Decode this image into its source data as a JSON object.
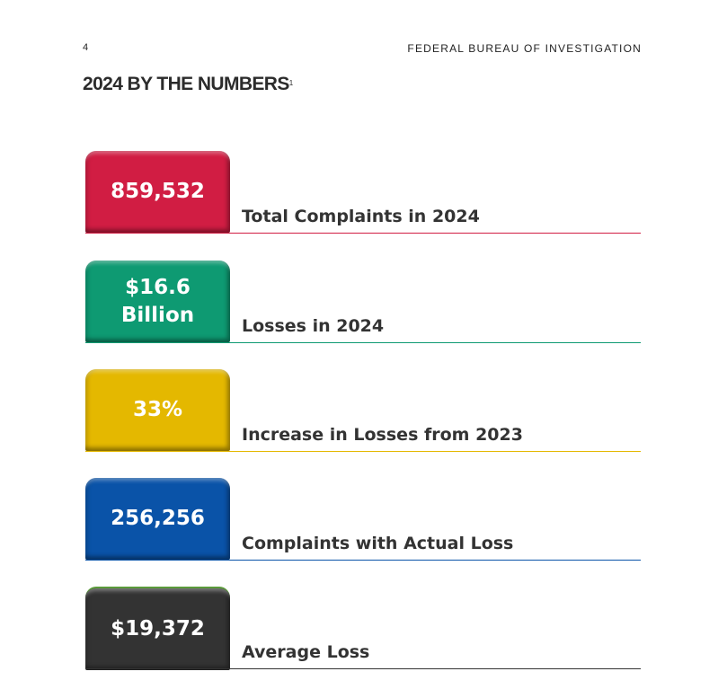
{
  "page_number": "4",
  "header": "FEDERAL BUREAU OF INVESTIGATION",
  "title": "2024 BY THE NUMBERS",
  "title_footnote": "1",
  "stats": [
    {
      "value": "859,532",
      "label": "Total Complaints in 2024",
      "color": "#d11d43"
    },
    {
      "value": "$16.6 Billion",
      "label": "Losses in 2024",
      "color": "#0e9a72"
    },
    {
      "value": "33%",
      "label": "Increase in Losses from 2023",
      "color": "#e4b800"
    },
    {
      "value": "256,256",
      "label": "Complaints with Actual Loss",
      "color": "#0a53a8"
    },
    {
      "value": "$19,372",
      "label": "Average Loss",
      "color": "#333333"
    }
  ]
}
